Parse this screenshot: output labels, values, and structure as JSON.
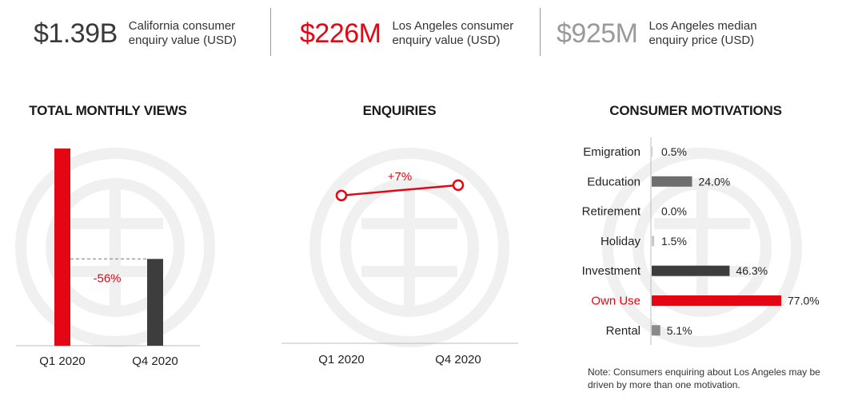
{
  "kpis": [
    {
      "value": "$1.39B",
      "label_line1": "California consumer",
      "label_line2": "enquiry value (USD)",
      "color": "#3a3a3a"
    },
    {
      "value": "$226M",
      "label_line1": "Los Angeles consumer",
      "label_line2": "enquiry value (USD)",
      "color": "#e30613"
    },
    {
      "value": "$925M",
      "label_line1": "Los Angeles median",
      "label_line2": "enquiry price (USD)",
      "color": "#9a9a9a"
    }
  ],
  "colors": {
    "accent": "#e30613",
    "dark": "#3d3d3d",
    "mid": "#7a7a7a",
    "light": "#c8c8c8",
    "watermark": "#f0f0f0"
  },
  "chart_data": [
    {
      "type": "bar",
      "title": "TOTAL MONTHLY VIEWS",
      "categories": [
        "Q1 2020",
        "Q4 2020"
      ],
      "values": [
        100,
        44
      ],
      "ylim": [
        0,
        100
      ],
      "annotation": "-56%",
      "grid": false
    },
    {
      "type": "line",
      "title": "ENQUIRIES",
      "categories": [
        "Q1 2020",
        "Q4 2020"
      ],
      "values": [
        100,
        107
      ],
      "ylim": [
        0,
        135
      ],
      "annotation": "+7%",
      "grid": false
    },
    {
      "type": "bar",
      "orientation": "horizontal",
      "title": "CONSUMER MOTIVATIONS",
      "categories": [
        "Emigration",
        "Education",
        "Retirement",
        "Holiday",
        "Investment",
        "Own Use",
        "Rental"
      ],
      "values": [
        0.5,
        24.0,
        0.0,
        1.5,
        46.3,
        77.0,
        5.1
      ],
      "value_labels": [
        "0.5%",
        "24.0%",
        "0.0%",
        "1.5%",
        "46.3%",
        "77.0%",
        "5.1%"
      ],
      "bar_colors": [
        "#c8c8c8",
        "#6e6e6e",
        "#c8c8c8",
        "#c8c8c8",
        "#3d3d3d",
        "#e30613",
        "#8a8a8a"
      ],
      "xlim": [
        0,
        77
      ],
      "grid": false
    }
  ],
  "note": "Note: Consumers enquiring about Los Angeles may be driven by more than one motivation."
}
